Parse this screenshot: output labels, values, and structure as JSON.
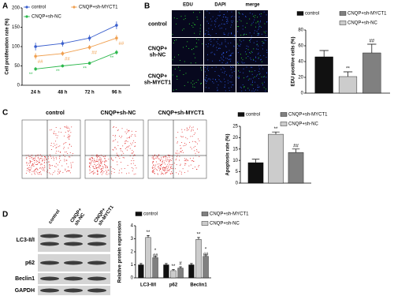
{
  "panel_letters": [
    "A",
    "B",
    "C",
    "D"
  ],
  "edu_images": {
    "columns": [
      "EDU",
      "DAPI",
      "merge"
    ],
    "rows": [
      "control",
      "CNQP+\nsh-NC",
      "CNQP+\nsh-MYCT1"
    ]
  },
  "flow_images": {
    "titles": [
      "control",
      "CNQP+sh-NC",
      "CNQP+sh-MYCT1"
    ]
  },
  "blot": {
    "columns": [
      "control",
      "CNQP+\nsh-NC",
      "CNQP+\nsh-MYCT1"
    ],
    "rows": [
      "LC3-II/I",
      "p62",
      "Beclin1",
      "GAPDH"
    ]
  },
  "chart_data": [
    {
      "type": "line",
      "y_label": "Cell proliferation rate (%)",
      "categories": [
        "24 h",
        "48 h",
        "72 h",
        "96 h"
      ],
      "ylim": [
        0,
        200
      ],
      "yticks": [
        0,
        50,
        100,
        150,
        200
      ],
      "series": [
        {
          "name": "control",
          "color": "#3a5fcd",
          "values": [
            100,
            108,
            122,
            155
          ],
          "errors": [
            10,
            8,
            8,
            10
          ],
          "annotations": [
            null,
            null,
            null,
            null
          ]
        },
        {
          "name": "CNQP+sh-NC",
          "color": "#2db84d",
          "values": [
            42,
            50,
            57,
            85
          ],
          "errors": [
            5,
            4,
            4,
            6
          ],
          "annotations": [
            "**",
            "**",
            "**",
            "**"
          ]
        },
        {
          "name": "CNQP+sh-MYCT1",
          "color": "#f0a050",
          "values": [
            75,
            82,
            98,
            122
          ],
          "errors": [
            8,
            6,
            6,
            8
          ],
          "annotations": [
            "##",
            "##",
            "##",
            "##"
          ]
        }
      ]
    },
    {
      "type": "bar",
      "y_label": "EDU positive cells (%)",
      "ylim": [
        0,
        80
      ],
      "yticks": [
        0,
        20,
        40,
        60,
        80
      ],
      "series": [
        {
          "name": "control",
          "color": "#111111",
          "values": [
            46
          ],
          "errors": [
            8
          ],
          "annotations": [
            null
          ]
        },
        {
          "name": "CNQP+sh-NC",
          "color": "#cccccc",
          "values": [
            21
          ],
          "errors": [
            6
          ],
          "annotations": [
            "**"
          ]
        },
        {
          "name": "CNQP+sh-MYCT1",
          "color": "#808080",
          "values": [
            51
          ],
          "errors": [
            11
          ],
          "annotations": [
            "##"
          ]
        }
      ]
    },
    {
      "type": "bar",
      "y_label": "Apoptosis rate (%)",
      "ylim": [
        0,
        25
      ],
      "yticks": [
        0,
        5,
        10,
        15,
        20,
        25
      ],
      "series": [
        {
          "name": "control",
          "color": "#111111",
          "values": [
            9
          ],
          "errors": [
            1.5
          ],
          "annotations": [
            null
          ]
        },
        {
          "name": "CNQP+sh-NC",
          "color": "#cccccc",
          "values": [
            21.5
          ],
          "errors": [
            1
          ],
          "annotations": [
            "**"
          ]
        },
        {
          "name": "CNQP+sh-MYCT1",
          "color": "#808080",
          "values": [
            13.5
          ],
          "errors": [
            1.5
          ],
          "annotations": [
            "##"
          ]
        }
      ]
    },
    {
      "type": "bar",
      "y_label": "Relative protein expression",
      "categories": [
        "LC3-II/I",
        "p62",
        "Beclin1"
      ],
      "ylim": [
        0,
        4
      ],
      "yticks": [
        0,
        1,
        2,
        3,
        4
      ],
      "series": [
        {
          "name": "control",
          "color": "#111111",
          "values": [
            1,
            1,
            1
          ],
          "errors": [
            0.1,
            0.1,
            0.1
          ],
          "annotations": [
            null,
            null,
            null
          ]
        },
        {
          "name": "CNQP+sh-NC",
          "color": "#cccccc",
          "values": [
            3.1,
            0.55,
            2.95
          ],
          "errors": [
            0.15,
            0.08,
            0.15
          ],
          "annotations": [
            "**",
            "**",
            "**"
          ]
        },
        {
          "name": "CNQP+sh-MYCT1",
          "color": "#808080",
          "values": [
            1.55,
            0.75,
            1.65
          ],
          "errors": [
            0.12,
            0.1,
            0.12
          ],
          "annotations": [
            "*\n##",
            "#",
            "*\n##"
          ]
        }
      ]
    }
  ]
}
